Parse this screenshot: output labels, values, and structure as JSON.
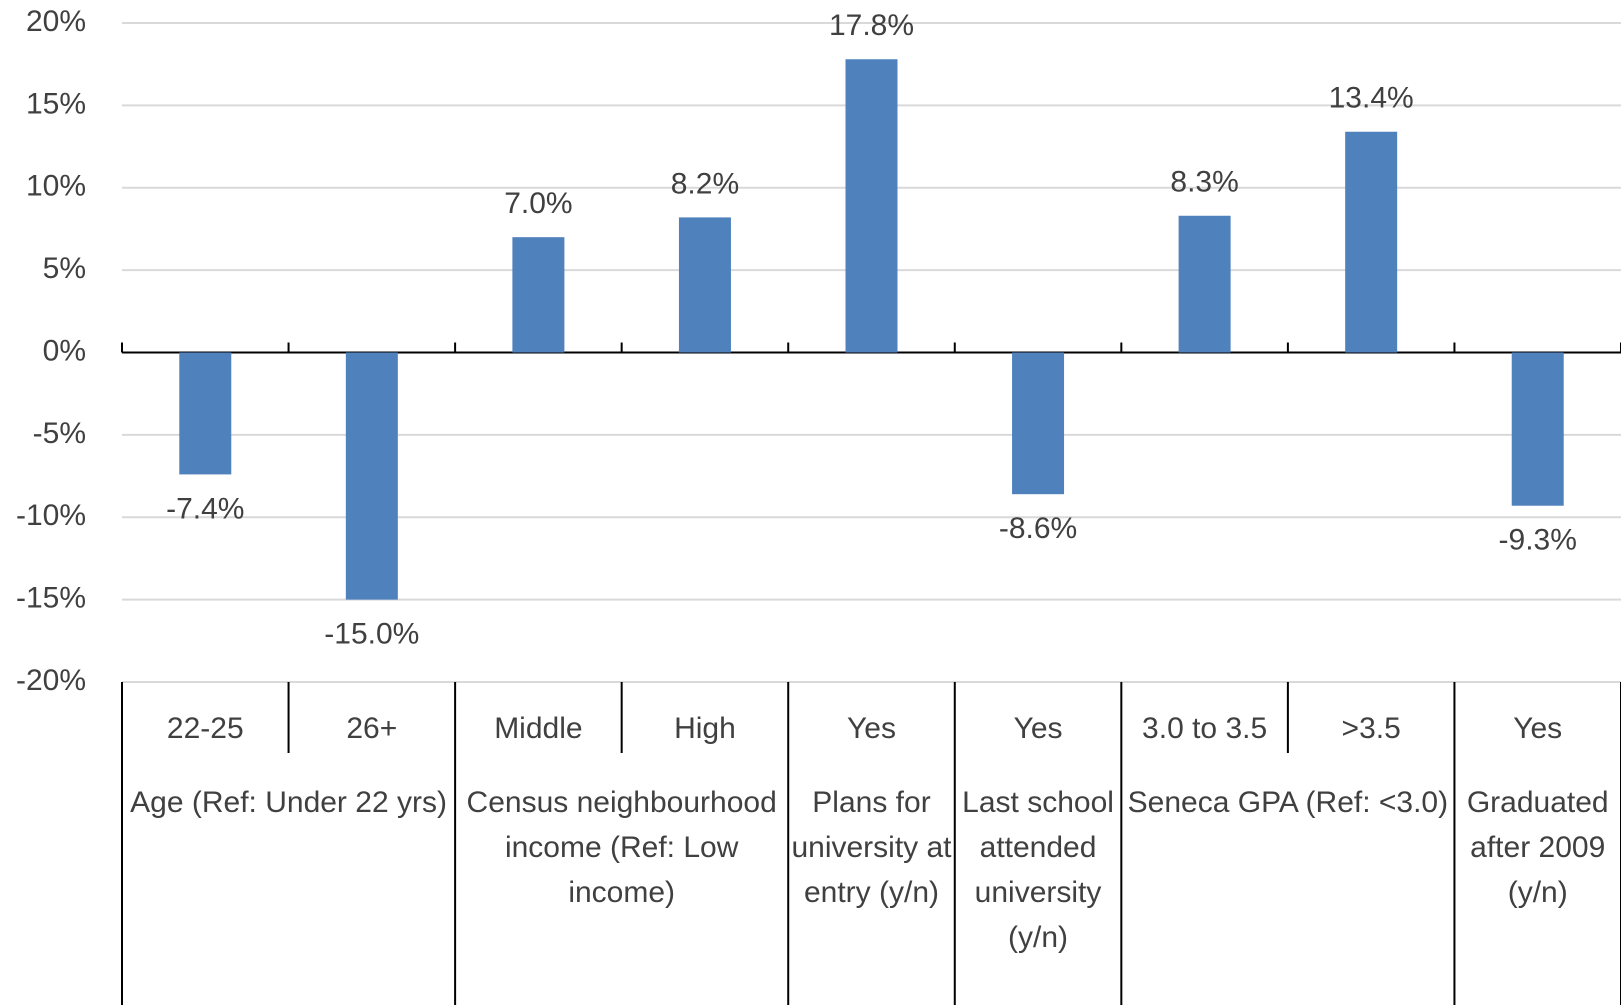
{
  "chart_data": {
    "type": "bar",
    "color": "#4f81bd",
    "grid": true,
    "ylim": [
      -20,
      20
    ],
    "yticks": [
      {
        "value": -20,
        "label": "-20%"
      },
      {
        "value": -15,
        "label": "-15%"
      },
      {
        "value": -10,
        "label": "-10%"
      },
      {
        "value": -5,
        "label": "-5%"
      },
      {
        "value": 0,
        "label": "0%"
      },
      {
        "value": 5,
        "label": "5%"
      },
      {
        "value": 10,
        "label": "10%"
      },
      {
        "value": 15,
        "label": "15%"
      },
      {
        "value": 20,
        "label": "20%"
      }
    ],
    "groups": [
      {
        "name": "Age (Ref: Under 22 yrs)",
        "categories": [
          "22-25",
          "26+"
        ],
        "values": [
          -7.4,
          -15.0
        ],
        "value_labels": [
          "-7.4%",
          "-15.0%"
        ]
      },
      {
        "name": "Census neighbourhood income (Ref: Low income)",
        "categories": [
          "Middle",
          "High"
        ],
        "values": [
          7.0,
          8.2
        ],
        "value_labels": [
          "7.0%",
          "8.2%"
        ]
      },
      {
        "name": "Plans for university at entry (y/n)",
        "categories": [
          "Yes"
        ],
        "values": [
          17.8
        ],
        "value_labels": [
          "17.8%"
        ]
      },
      {
        "name": "Last school attended university (y/n)",
        "categories": [
          "Yes"
        ],
        "values": [
          -8.6
        ],
        "value_labels": [
          "-8.6%"
        ]
      },
      {
        "name": "Seneca GPA (Ref: <3.0)",
        "categories": [
          "3.0 to 3.5",
          ">3.5"
        ],
        "values": [
          8.3,
          13.4
        ],
        "value_labels": [
          "8.3%",
          "13.4%"
        ]
      },
      {
        "name": "Graduated after 2009 (y/n)",
        "categories": [
          "Yes"
        ],
        "values": [
          -9.3
        ],
        "value_labels": [
          "-9.3%"
        ]
      }
    ]
  }
}
